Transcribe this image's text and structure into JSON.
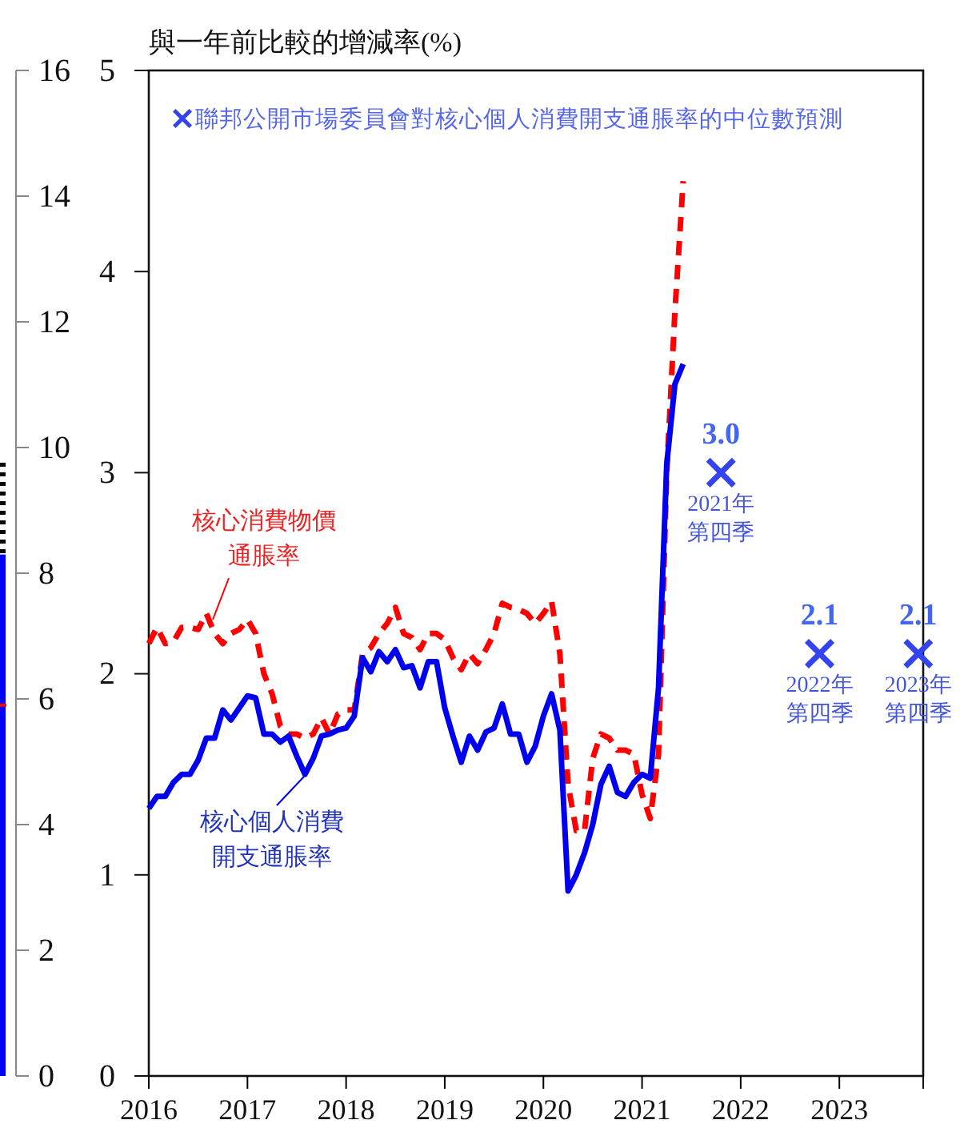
{
  "chart_data": [
    {
      "type": "bar",
      "stacked": true,
      "categories": [
        null
      ],
      "ylim": [
        0,
        16
      ],
      "yticks": [
        0,
        2,
        4,
        6,
        8,
        10,
        12,
        14,
        16
      ],
      "tick_labels": "y",
      "series": [
        {
          "color": "#0000ff",
          "values": [
            8.3
          ]
        },
        {
          "color": "#000000",
          "values": [
            1.5
          ]
        }
      ],
      "ref_lines": [
        {
          "axis": "y",
          "value": 5.9,
          "color": "#ff0000"
        }
      ]
    },
    {
      "type": "line",
      "title": "與一年前比較的增減率(%)",
      "xlim": [
        2016,
        2023.85
      ],
      "xticks": [
        2016,
        2017,
        2018,
        2019,
        2020,
        2021,
        2022,
        2023
      ],
      "ylim": [
        0,
        5
      ],
      "yticks": [
        0,
        1,
        2,
        3,
        4,
        5
      ],
      "grid": false,
      "legend": "top",
      "series": [
        {
          "name": "核心消費物價通脹率",
          "color": "#ff0000",
          "line_style": "dashed",
          "x": [
            2016,
            2016.083,
            2016.167,
            2016.25,
            2016.333,
            2016.417,
            2016.5,
            2016.583,
            2016.667,
            2016.75,
            2016.833,
            2016.917,
            2017,
            2017.083,
            2017.167,
            2017.25,
            2017.333,
            2017.417,
            2017.5,
            2017.583,
            2017.667,
            2017.75,
            2017.833,
            2017.917,
            2018,
            2018.083,
            2018.167,
            2018.25,
            2018.333,
            2018.417,
            2018.5,
            2018.583,
            2018.667,
            2018.75,
            2018.833,
            2018.917,
            2019,
            2019.083,
            2019.167,
            2019.25,
            2019.333,
            2019.417,
            2019.5,
            2019.583,
            2019.667,
            2019.75,
            2019.833,
            2019.917,
            2020,
            2020.083,
            2020.167,
            2020.25,
            2020.333,
            2020.417,
            2020.5,
            2020.583,
            2020.667,
            2020.75,
            2020.833,
            2020.917,
            2021,
            2021.083,
            2021.167,
            2021.25,
            2021.333,
            2021.417
          ],
          "values": [
            2.15,
            2.23,
            2.15,
            2.16,
            2.23,
            2.23,
            2.22,
            2.3,
            2.2,
            2.15,
            2.2,
            2.22,
            2.27,
            2.2,
            2.0,
            1.9,
            1.74,
            1.7,
            1.7,
            1.68,
            1.7,
            1.78,
            1.7,
            1.8,
            1.82,
            1.82,
            2.1,
            2.13,
            2.2,
            2.25,
            2.33,
            2.2,
            2.18,
            2.12,
            2.2,
            2.2,
            2.17,
            2.08,
            2.02,
            2.1,
            2.05,
            2.12,
            2.2,
            2.35,
            2.33,
            2.32,
            2.3,
            2.25,
            2.3,
            2.36,
            2.1,
            1.45,
            1.22,
            1.22,
            1.58,
            1.7,
            1.68,
            1.62,
            1.62,
            1.6,
            1.4,
            1.28,
            1.6,
            3.0,
            3.8,
            4.45
          ]
        },
        {
          "name": "核心個人消費開支通脹率",
          "color": "#0000ee",
          "line_style": "solid",
          "x": [
            2016,
            2016.083,
            2016.167,
            2016.25,
            2016.333,
            2016.417,
            2016.5,
            2016.583,
            2016.667,
            2016.75,
            2016.833,
            2016.917,
            2017,
            2017.083,
            2017.167,
            2017.25,
            2017.333,
            2017.417,
            2017.5,
            2017.583,
            2017.667,
            2017.75,
            2017.833,
            2017.917,
            2018,
            2018.083,
            2018.167,
            2018.25,
            2018.333,
            2018.417,
            2018.5,
            2018.583,
            2018.667,
            2018.75,
            2018.833,
            2018.917,
            2019,
            2019.083,
            2019.167,
            2019.25,
            2019.333,
            2019.417,
            2019.5,
            2019.583,
            2019.667,
            2019.75,
            2019.833,
            2019.917,
            2020,
            2020.083,
            2020.167,
            2020.25,
            2020.333,
            2020.417,
            2020.5,
            2020.583,
            2020.667,
            2020.75,
            2020.833,
            2020.917,
            2021,
            2021.083,
            2021.167,
            2021.25,
            2021.333,
            2021.417
          ],
          "values": [
            1.33,
            1.39,
            1.39,
            1.46,
            1.5,
            1.5,
            1.57,
            1.68,
            1.68,
            1.82,
            1.77,
            1.83,
            1.89,
            1.88,
            1.7,
            1.7,
            1.66,
            1.69,
            1.59,
            1.5,
            1.58,
            1.69,
            1.7,
            1.72,
            1.73,
            1.79,
            2.08,
            2.01,
            2.11,
            2.06,
            2.12,
            2.03,
            2.04,
            1.93,
            2.06,
            2.06,
            1.83,
            1.69,
            1.56,
            1.69,
            1.62,
            1.71,
            1.73,
            1.85,
            1.7,
            1.7,
            1.56,
            1.64,
            1.79,
            1.9,
            1.72,
            0.92,
            1.0,
            1.11,
            1.25,
            1.45,
            1.54,
            1.41,
            1.39,
            1.46,
            1.5,
            1.48,
            1.93,
            3.04,
            3.44,
            3.54
          ]
        },
        {
          "name": "聯邦公開市場委員會對核心個人消費開支通脹率的中位數預測",
          "type": "scatter",
          "marker": "cross",
          "color": "#3344ee",
          "x": [
            2021.8,
            2022.8,
            2023.8
          ],
          "values": [
            3.0,
            2.1,
            2.1
          ],
          "value_labels": [
            "3.0",
            "2.1",
            "2.1"
          ]
        }
      ],
      "annotations": [
        {
          "text": "2021年第四季",
          "x": 2021.8,
          "y": 3.0
        },
        {
          "text": "2022年第四季",
          "x": 2022.8,
          "y": 2.1
        },
        {
          "text": "2023年第四季",
          "x": 2023.8,
          "y": 2.1
        }
      ]
    }
  ]
}
